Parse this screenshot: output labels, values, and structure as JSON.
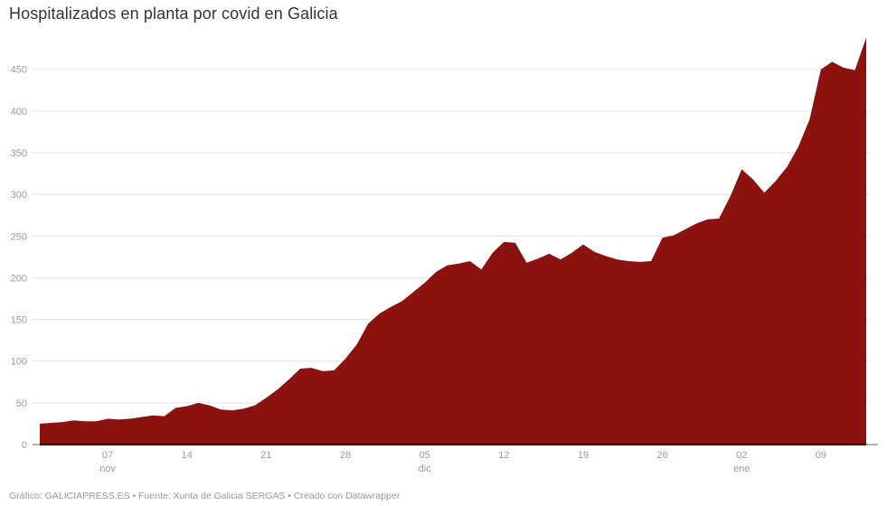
{
  "header": {
    "title": "Hospitalizados en planta por covid en Galicia"
  },
  "footer": {
    "byline": "Gráfico: GALICIAPRESS.ES • Fuente: Xunta de Galicia SERGAS • Creado con Datawrapper"
  },
  "chart_data": {
    "type": "area",
    "title": "Hospitalizados en planta por covid en Galicia",
    "xlabel": "",
    "ylabel": "",
    "ylim": [
      0,
      490
    ],
    "grid": true,
    "legend": null,
    "categories": [
      "01 nov",
      "02 nov",
      "03 nov",
      "04 nov",
      "05 nov",
      "06 nov",
      "07 nov",
      "08 nov",
      "09 nov",
      "10 nov",
      "11 nov",
      "12 nov",
      "13 nov",
      "14 nov",
      "15 nov",
      "16 nov",
      "17 nov",
      "18 nov",
      "19 nov",
      "20 nov",
      "21 nov",
      "22 nov",
      "23 nov",
      "24 nov",
      "25 nov",
      "26 nov",
      "27 nov",
      "28 nov",
      "29 nov",
      "30 nov",
      "01 dic",
      "02 dic",
      "03 dic",
      "04 dic",
      "05 dic",
      "06 dic",
      "07 dic",
      "08 dic",
      "09 dic",
      "10 dic",
      "11 dic",
      "12 dic",
      "13 dic",
      "14 dic",
      "15 dic",
      "16 dic",
      "17 dic",
      "18 dic",
      "19 dic",
      "20 dic",
      "21 dic",
      "22 dic",
      "23 dic",
      "24 dic",
      "25 dic",
      "26 dic",
      "27 dic",
      "28 dic",
      "29 dic",
      "30 dic",
      "31 dic",
      "01 ene",
      "02 ene",
      "03 ene",
      "04 ene",
      "05 ene",
      "06 ene",
      "07 ene",
      "08 ene",
      "09 ene",
      "10 ene",
      "11 ene",
      "12 ene",
      "13 ene"
    ],
    "values": [
      25,
      26,
      27,
      29,
      28,
      28,
      31,
      30,
      31,
      33,
      35,
      34,
      44,
      46,
      50,
      47,
      42,
      41,
      43,
      47,
      56,
      66,
      78,
      91,
      92,
      88,
      89,
      103,
      120,
      145,
      157,
      165,
      172,
      183,
      194,
      207,
      215,
      217,
      220,
      210,
      230,
      243,
      242,
      218,
      223,
      229,
      222,
      230,
      240,
      231,
      226,
      222,
      220,
      219,
      220,
      248,
      251,
      258,
      265,
      270,
      271,
      298,
      330,
      318,
      302,
      316,
      333,
      357,
      390,
      450,
      459,
      452,
      449,
      488
    ],
    "y_ticks": [
      0,
      50,
      100,
      150,
      200,
      250,
      300,
      350,
      400,
      450
    ],
    "x_ticks": [
      {
        "index": 6,
        "label": "07",
        "month": "nov"
      },
      {
        "index": 13,
        "label": "14"
      },
      {
        "index": 20,
        "label": "21"
      },
      {
        "index": 27,
        "label": "28"
      },
      {
        "index": 34,
        "label": "05",
        "month": "dic"
      },
      {
        "index": 41,
        "label": "12"
      },
      {
        "index": 48,
        "label": "19"
      },
      {
        "index": 55,
        "label": "26"
      },
      {
        "index": 62,
        "label": "02",
        "month": "ene"
      },
      {
        "index": 69,
        "label": "09"
      }
    ],
    "colors": {
      "area_fill": "#8c1210",
      "area_edge": "#4d0a07",
      "grid": "#e3e3e3",
      "axis_line": "#b3b3b3",
      "tick_label": "#9a9a9a",
      "title": "#333333",
      "footer": "#999999"
    }
  }
}
